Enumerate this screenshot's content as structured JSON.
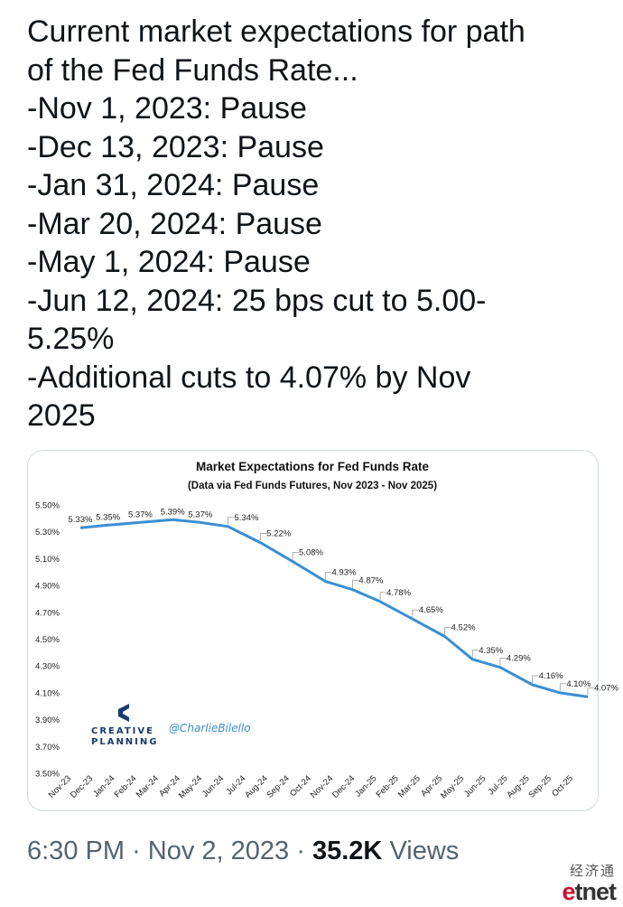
{
  "tweet": {
    "lines": [
      "Current market expectations for path",
      "of the Fed Funds Rate...",
      "-Nov 1, 2023: Pause",
      "-Dec 13, 2023: Pause",
      "-Jan 31, 2024: Pause",
      "-Mar 20, 2024: Pause",
      "-May 1, 2024: Pause",
      "-Jun 12, 2024: 25 bps cut to 5.00-",
      "5.25%",
      "-Additional cuts to 4.07% by Nov",
      "2025"
    ],
    "time": "6:30 PM",
    "date": "Nov 2, 2023",
    "separator": "·",
    "views_count": "35.2K",
    "views_label": "Views"
  },
  "brand": {
    "name_line1": "CREATIVE",
    "name_line2": "PLANNING",
    "handle": "@CharlieBilello"
  },
  "watermark": {
    "chinese": "经济通",
    "logo_e": "e",
    "logo_rest": "tnet"
  },
  "colors": {
    "line": "#3b8fd1",
    "brand": "#1a3a6b",
    "handle": "#3b8fd1",
    "grid": "#e6e6e6"
  },
  "chart_data": {
    "type": "line",
    "title": "Market Expectations for Fed Funds Rate",
    "subtitle": "(Data via Fed Funds Futures, Nov 2023 - Nov 2025)",
    "xlabel": "",
    "ylabel": "",
    "ylim": [
      3.5,
      5.5
    ],
    "yticks": [
      "5.50%",
      "5.30%",
      "5.10%",
      "4.90%",
      "4.70%",
      "4.50%",
      "4.30%",
      "4.10%",
      "3.90%",
      "3.70%",
      "3.50%"
    ],
    "grid": false,
    "categories": [
      "Nov-23",
      "Dec-23",
      "Jan-24",
      "Feb-24",
      "Mar-24",
      "Apr-24",
      "May-24",
      "Jun-24",
      "Jul-24",
      "Aug-24",
      "Sep-24",
      "Oct-24",
      "Nov-24",
      "Dec-24",
      "Jan-25",
      "Feb-25",
      "Mar-25",
      "Apr-25",
      "May-25",
      "Jun-25",
      "Jul-25",
      "Aug-25",
      "Sep-25",
      "Oct-25"
    ],
    "points": [
      {
        "date": "2023-11-01",
        "value": 5.33,
        "label": "5.33%"
      },
      {
        "date": "2023-12-13",
        "value": 5.35,
        "label": "5.35%"
      },
      {
        "date": "2024-01-31",
        "value": 5.37,
        "label": "5.37%"
      },
      {
        "date": "2024-03-20",
        "value": 5.39,
        "label": "5.39%"
      },
      {
        "date": "2024-05-01",
        "value": 5.37,
        "label": "5.37%"
      },
      {
        "date": "2024-06-12",
        "value": 5.34,
        "label": "5.34%"
      },
      {
        "date": "2024-07-31",
        "value": 5.22,
        "label": "5.22%"
      },
      {
        "date": "2024-09-18",
        "value": 5.08,
        "label": "5.08%"
      },
      {
        "date": "2024-11-07",
        "value": 4.93,
        "label": "4.93%"
      },
      {
        "date": "2024-12-18",
        "value": 4.87,
        "label": "4.87%"
      },
      {
        "date": "2025-01-29",
        "value": 4.78,
        "label": "4.78%"
      },
      {
        "date": "2025-03-19",
        "value": 4.65,
        "label": "4.65%"
      },
      {
        "date": "2025-05-07",
        "value": 4.52,
        "label": "4.52%"
      },
      {
        "date": "2025-06-18",
        "value": 4.35,
        "label": "4.35%"
      },
      {
        "date": "2025-07-30",
        "value": 4.29,
        "label": "4.29%"
      },
      {
        "date": "2025-09-17",
        "value": 4.16,
        "label": "4.16%"
      },
      {
        "date": "2025-10-29",
        "value": 4.1,
        "label": "4.10%"
      },
      {
        "date": "2025-12-10",
        "value": 4.07,
        "label": "4.07%"
      }
    ]
  }
}
